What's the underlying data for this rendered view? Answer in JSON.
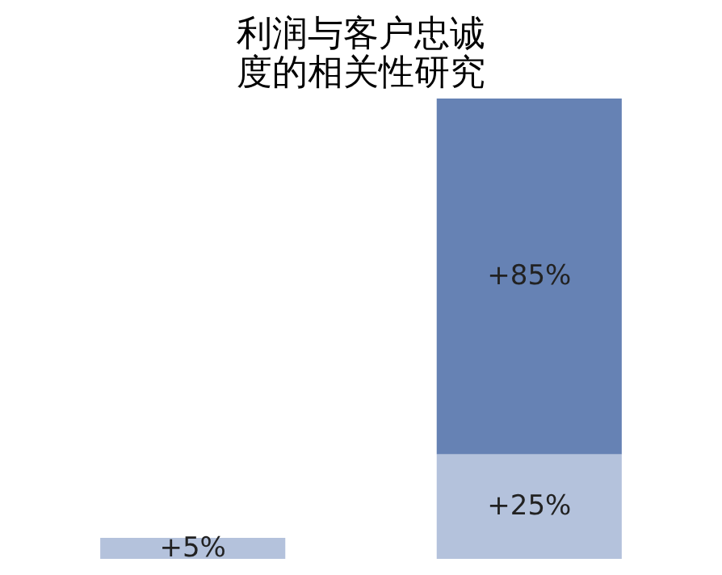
{
  "chart_data": {
    "type": "bar",
    "title": [
      "利润与客户忠诚",
      "度的相关性研究"
    ],
    "categories": [
      null,
      null
    ],
    "stacked": true,
    "tick_labels": false,
    "series": [
      {
        "color": "#b4c2dc",
        "values": [
          5,
          25
        ],
        "value_labels": [
          "+5%",
          "+25%"
        ]
      },
      {
        "color": "#6682b4",
        "values": [
          null,
          85
        ],
        "value_labels": [
          null,
          "+85%"
        ]
      }
    ]
  }
}
